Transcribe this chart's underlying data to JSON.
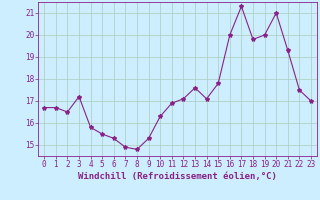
{
  "x": [
    0,
    1,
    2,
    3,
    4,
    5,
    6,
    7,
    8,
    9,
    10,
    11,
    12,
    13,
    14,
    15,
    16,
    17,
    18,
    19,
    20,
    21,
    22,
    23
  ],
  "y": [
    16.7,
    16.7,
    16.5,
    17.2,
    15.8,
    15.5,
    15.3,
    14.9,
    14.8,
    15.3,
    16.3,
    16.9,
    17.1,
    17.6,
    17.1,
    17.8,
    20.0,
    21.3,
    19.8,
    20.0,
    21.0,
    19.3,
    17.5,
    17.0
  ],
  "line_color": "#882288",
  "marker": "*",
  "marker_size": 3,
  "bg_color": "#cceeff",
  "grid_color": "#aaccbb",
  "xlabel": "Windchill (Refroidissement éolien,°C)",
  "ylim": [
    14.5,
    21.5
  ],
  "xlim": [
    -0.5,
    23.5
  ],
  "yticks": [
    15,
    16,
    17,
    18,
    19,
    20,
    21
  ],
  "xticks": [
    0,
    1,
    2,
    3,
    4,
    5,
    6,
    7,
    8,
    9,
    10,
    11,
    12,
    13,
    14,
    15,
    16,
    17,
    18,
    19,
    20,
    21,
    22,
    23
  ],
  "tick_color": "#882288",
  "label_color": "#882288",
  "tick_fontsize": 5.5,
  "xlabel_fontsize": 6.5,
  "linewidth": 0.8
}
